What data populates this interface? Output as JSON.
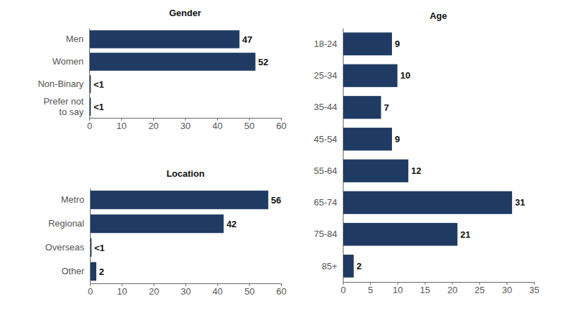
{
  "chart_data": [
    {
      "type": "bar",
      "title": "Gender",
      "orientation": "horizontal",
      "categories": [
        "Men",
        "Women",
        "Non-Binary",
        "Prefer not to say"
      ],
      "values": [
        47,
        52,
        0.5,
        0.5
      ],
      "value_labels": [
        "47",
        "52",
        "<1",
        "<1"
      ],
      "color": "#1f3b63",
      "data_labels": true,
      "xlim": [
        0,
        60
      ],
      "xticks": [
        0,
        10,
        20,
        30,
        40,
        50,
        60
      ]
    },
    {
      "type": "bar",
      "title": "Location",
      "orientation": "horizontal",
      "categories": [
        "Metro",
        "Regional",
        "Overseas",
        "Other"
      ],
      "values": [
        56,
        42,
        0.5,
        2
      ],
      "value_labels": [
        "56",
        "42",
        "<1",
        "2"
      ],
      "color": "#1f3b63",
      "data_labels": true,
      "xlim": [
        0,
        60
      ],
      "xticks": [
        0,
        10,
        20,
        30,
        40,
        50,
        60
      ]
    },
    {
      "type": "bar",
      "title": "Age",
      "orientation": "horizontal",
      "categories": [
        "18-24",
        "25-34",
        "35-44",
        "45-54",
        "55-64",
        "65-74",
        "75-84",
        "85+"
      ],
      "values": [
        9,
        10,
        7,
        9,
        12,
        31,
        21,
        2
      ],
      "value_labels": [
        "9",
        "10",
        "7",
        "9",
        "12",
        "31",
        "21",
        "2"
      ],
      "color": "#1f3b63",
      "data_labels": true,
      "xlim": [
        0,
        35
      ],
      "xticks": [
        0,
        5,
        10,
        15,
        20,
        25,
        30,
        35
      ]
    }
  ]
}
